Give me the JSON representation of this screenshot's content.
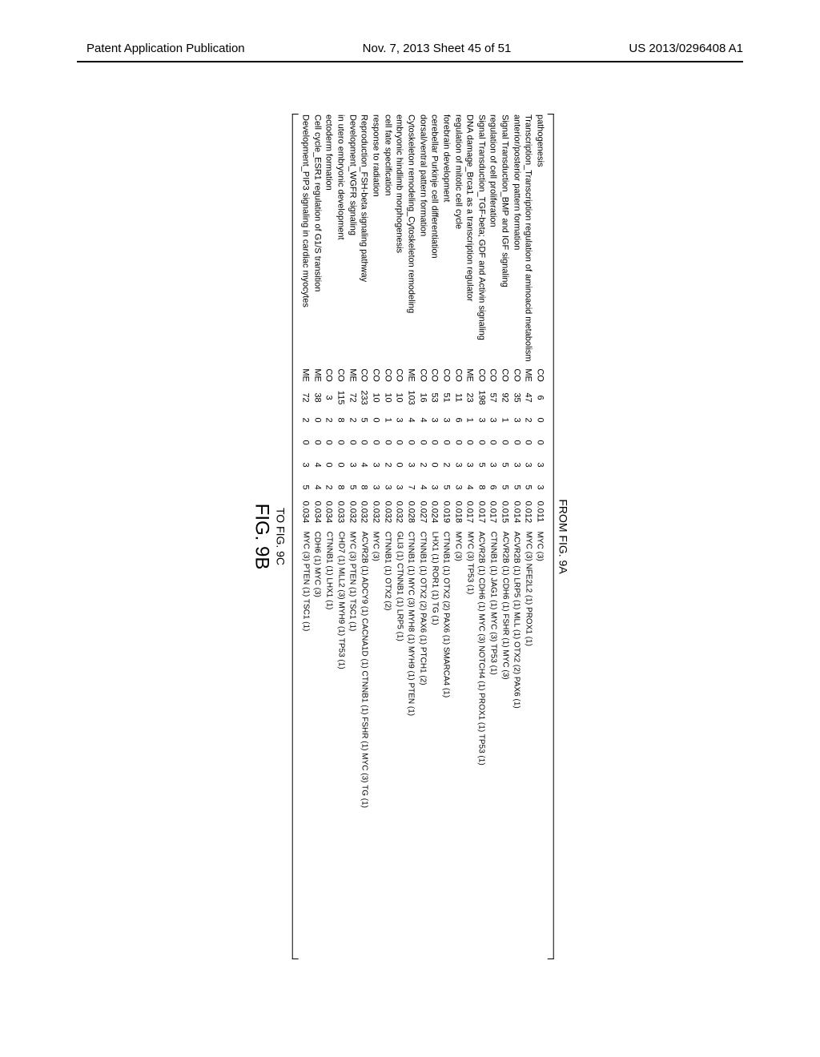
{
  "header": {
    "left": "Patent Application Publication",
    "center": "Nov. 7, 2013  Sheet 45 of 51",
    "right": "US 2013/0296408 A1"
  },
  "labels": {
    "from": "FROM FIG. 9A",
    "to": "TO FIG. 9C",
    "fig": "FIG. 9B"
  },
  "rows": [
    {
      "p": "pathogenesis",
      "c": [
        "CO",
        "6",
        "0",
        "0",
        "3",
        "3",
        "0.011"
      ],
      "g": "MYC (3)"
    },
    {
      "p": "Transcription_Transcription regulation of aminoacid metabolism",
      "c": [
        "ME",
        "47",
        "2",
        "0",
        "3",
        "5",
        "0.012"
      ],
      "g": "MYC (3)   NFE2L2 (1)   PROX1 (1)"
    },
    {
      "p": "anterior/posterior pattern formation",
      "c": [
        "CO",
        "35",
        "3",
        "0",
        "3",
        "5",
        "0.014"
      ],
      "g": "ACVR2B (1)   LRP5 (1)   MLL (1)   OTX2 (2)   PAX6 (1)"
    },
    {
      "p": "Signal Transduction_BMP and IGF signaling",
      "c": [
        "CO",
        "92",
        "1",
        "0",
        "5",
        "5",
        "0.015"
      ],
      "g": "ACVR2B (1)   CDH6 (1)   FSHR (1)   MYC (3)"
    },
    {
      "p": "regulation of cell proliferation",
      "c": [
        "CO",
        "57",
        "3",
        "0",
        "3",
        "6",
        "0.017"
      ],
      "g": "CTNNB1 (1)   JAG1 (1)   MYC (3)   TP53 (1)"
    },
    {
      "p": "Signal Transduction_TGF-beta; GDF and Activin signaling",
      "c": [
        "CO",
        "198",
        "3",
        "0",
        "5",
        "8",
        "0.017"
      ],
      "g": "ACVR2B (1)   CDH6 (1)   MYC (3)   NOTCH4 (1)   PROX1 (1)   TP53 (1)"
    },
    {
      "p": "DNA damage_Brca1 as a transcription regulator",
      "c": [
        "ME",
        "23",
        "1",
        "0",
        "3",
        "4",
        "0.017"
      ],
      "g": "MYC (3)   TP53 (1)"
    },
    {
      "p": "regulation of mitotic cell cycle",
      "c": [
        "CO",
        "11",
        "6",
        "0",
        "3",
        "3",
        "0.018"
      ],
      "g": "MYC (3)"
    },
    {
      "p": "forebrain development",
      "c": [
        "CO",
        "51",
        "3",
        "0",
        "2",
        "5",
        "0.019"
      ],
      "g": "CTNNB1 (1)   OTX2 (2)   PAX6 (1)   SMARCA4 (1)"
    },
    {
      "p": "cerebellar Purkinje cell differentiation",
      "c": [
        "CO",
        "53",
        "3",
        "0",
        "0",
        "3",
        "0.024"
      ],
      "g": "LHX1 (1)   ROR1 (1)   TG (1)"
    },
    {
      "p": "dorsal/ventral pattern formation",
      "c": [
        "CO",
        "16",
        "4",
        "0",
        "2",
        "4",
        "0.027"
      ],
      "g": "CTNNB1 (1)   OTX2 (2)   PAX6 (1)   PTCH1 (2)"
    },
    {
      "p": "Cytoskeleton remodeling_Cytoskeleton remodeling",
      "c": [
        "ME",
        "103",
        "4",
        "0",
        "3",
        "7",
        "0.028"
      ],
      "g": "CTNNB1 (1)   MYC (3)   MYH8 (1)   MYH9 (1)   PTEN (1)"
    },
    {
      "p": "embryonic hindlimb morphogenesis",
      "c": [
        "CO",
        "10",
        "3",
        "0",
        "0",
        "3",
        "0.032"
      ],
      "g": "GLI3 (1)   CTNNB1 (1)   LRP5 (1)"
    },
    {
      "p": "cell fate specification",
      "c": [
        "CO",
        "10",
        "1",
        "0",
        "2",
        "3",
        "0.032"
      ],
      "g": "CTNNB1 (1)   OTX2 (2)"
    },
    {
      "p": "response to radiation",
      "c": [
        "CO",
        "10",
        "0",
        "0",
        "3",
        "3",
        "0.032"
      ],
      "g": "MYC (3)"
    },
    {
      "p": "Reproduction_FSH-beta signaling pathway",
      "c": [
        "CO",
        "233",
        "5",
        "0",
        "4",
        "8",
        "0.032"
      ],
      "g": "ACVR2B (1)   ADCY9 (1)   CACNA1D (1) CTNNB1 (1)   FSHR (1)   MYC (3)   TG (1)"
    },
    {
      "p": "Development_WGFR signaling",
      "c": [
        "ME",
        "72",
        "2",
        "0",
        "3",
        "5",
        "0.032"
      ],
      "g": "MYC (3)   PTEN (1)   TSC1 (1)"
    },
    {
      "p": "in utero embryonic development",
      "c": [
        "CO",
        "115",
        "8",
        "0",
        "0",
        "8",
        "0.033"
      ],
      "g": "CHD7 (1)   MLL2 (3)   MYH9 (1)   TP53 (1)"
    },
    {
      "p": "ectoderm formation",
      "c": [
        "CO",
        "3",
        "2",
        "0",
        "0",
        "2",
        "0.034"
      ],
      "g": "CTNNB1 (1)   LHX1 (1)"
    },
    {
      "p": "Cell cycle_ESR1 regulation of G1/S transition",
      "c": [
        "ME",
        "38",
        "0",
        "0",
        "4",
        "4",
        "0.034"
      ],
      "g": "CDH6 (1)   MYC (3)"
    },
    {
      "p": "Development_PIP3 signaling in cardiac myocytes",
      "c": [
        "ME",
        "72",
        "2",
        "0",
        "3",
        "5",
        "0.034"
      ],
      "g": "MYC (3)   PTEN (1)   TSC1 (1)"
    }
  ]
}
